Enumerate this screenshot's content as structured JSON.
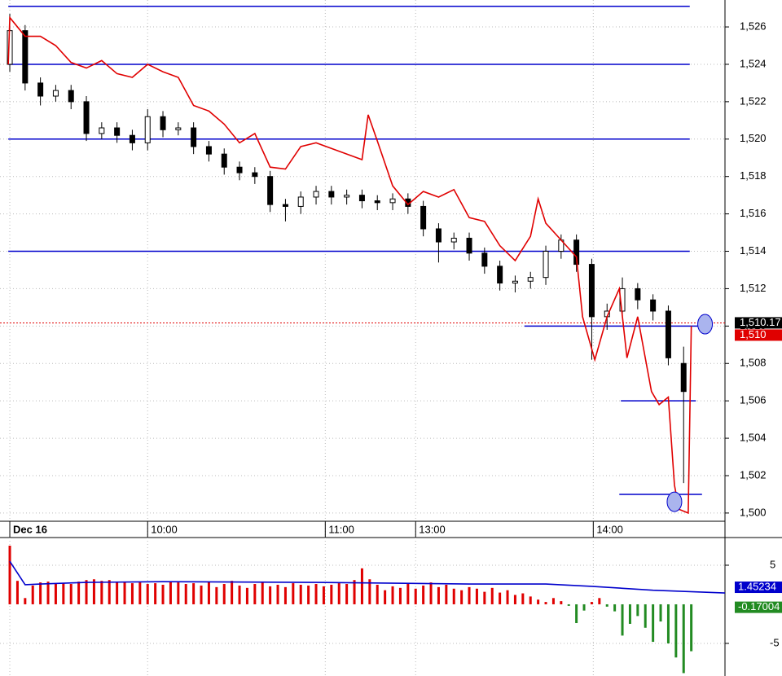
{
  "chart_data": [
    {
      "type": "candlestick",
      "open": [
        1524.0,
        1525.8,
        1523.0,
        1522.3,
        1522.6,
        1522.0,
        1520.3,
        1520.6,
        1520.2,
        1519.8,
        1521.2,
        1520.5,
        1520.6,
        1519.6,
        1519.2,
        1518.5,
        1518.2,
        1518.0,
        1516.5,
        1516.4,
        1516.9,
        1517.2,
        1516.9,
        1517.0,
        1516.7,
        1516.6,
        1516.8,
        1516.4,
        1515.2,
        1514.5,
        1514.7,
        1513.9,
        1513.2,
        1512.3,
        1512.4,
        1512.6,
        1514.0,
        1514.6,
        1513.3,
        1510.5,
        1510.8,
        1512.0,
        1511.4,
        1510.8,
        1508.0
      ],
      "high": [
        1526.7,
        1526.1,
        1523.3,
        1522.9,
        1522.9,
        1522.3,
        1520.9,
        1520.9,
        1520.5,
        1521.6,
        1521.5,
        1520.9,
        1520.9,
        1519.9,
        1519.5,
        1518.8,
        1518.5,
        1518.3,
        1516.8,
        1517.2,
        1517.5,
        1517.5,
        1517.3,
        1517.3,
        1517.0,
        1517.1,
        1517.1,
        1516.7,
        1515.5,
        1515.0,
        1515.0,
        1514.2,
        1513.5,
        1512.7,
        1512.9,
        1514.3,
        1514.9,
        1514.9,
        1513.6,
        1511.2,
        1512.6,
        1512.3,
        1511.7,
        1511.1,
        1508.9
      ],
      "low": [
        1523.6,
        1522.6,
        1521.8,
        1522.0,
        1521.6,
        1519.9,
        1520.0,
        1519.8,
        1519.4,
        1519.4,
        1520.1,
        1520.2,
        1519.2,
        1518.8,
        1518.1,
        1517.8,
        1517.6,
        1516.1,
        1515.6,
        1516.0,
        1516.5,
        1516.5,
        1516.5,
        1516.3,
        1516.2,
        1516.2,
        1516.0,
        1514.8,
        1513.4,
        1514.1,
        1513.5,
        1512.8,
        1511.9,
        1511.8,
        1512.0,
        1512.2,
        1513.6,
        1512.9,
        1508.2,
        1509.8,
        1510.5,
        1510.9,
        1510.3,
        1507.9,
        1501.6
      ],
      "close": [
        1525.8,
        1523.0,
        1522.3,
        1522.6,
        1522.0,
        1520.3,
        1520.6,
        1520.2,
        1519.8,
        1521.2,
        1520.5,
        1520.6,
        1519.6,
        1519.2,
        1518.5,
        1518.2,
        1518.0,
        1516.5,
        1516.4,
        1516.9,
        1517.2,
        1516.9,
        1517.0,
        1516.7,
        1516.6,
        1516.8,
        1516.4,
        1515.2,
        1514.5,
        1514.7,
        1513.9,
        1513.2,
        1512.3,
        1512.4,
        1512.6,
        1514.0,
        1514.6,
        1513.3,
        1510.5,
        1510.8,
        1512.0,
        1511.4,
        1510.8,
        1508.3,
        1506.5
      ],
      "candle_color": "#000000",
      "overlay": {
        "color": "#e00000",
        "x": [
          -0.1,
          0,
          1,
          2,
          3,
          4,
          5,
          6,
          7,
          8,
          9,
          10,
          11,
          12,
          13,
          14,
          15,
          16,
          17,
          18,
          19,
          20,
          21,
          22,
          23,
          23.4,
          24,
          25,
          26,
          27,
          28,
          29,
          30,
          31,
          32,
          33,
          34,
          34.5,
          35,
          36,
          37,
          37.4,
          38.2,
          39,
          39.8,
          40.3,
          41,
          41.9,
          42.4,
          43,
          43.4,
          43.7,
          44.3,
          44.5
        ],
        "values": [
          1524.0,
          1526.5,
          1525.5,
          1525.5,
          1525.0,
          1524.1,
          1523.8,
          1524.2,
          1523.5,
          1523.3,
          1524.0,
          1523.6,
          1523.3,
          1521.8,
          1521.5,
          1520.8,
          1519.8,
          1520.3,
          1518.5,
          1518.4,
          1519.6,
          1519.8,
          1519.5,
          1519.2,
          1518.9,
          1521.3,
          1519.9,
          1517.5,
          1516.5,
          1517.2,
          1516.9,
          1517.3,
          1515.8,
          1515.6,
          1514.3,
          1513.5,
          1514.8,
          1516.8,
          1515.5,
          1514.6,
          1513.7,
          1510.5,
          1508.2,
          1510.5,
          1512.0,
          1508.3,
          1510.5,
          1506.5,
          1505.8,
          1506.2,
          1501.5,
          1500.2,
          1500.0,
          1510.0
        ]
      },
      "levels": {
        "color": "#0000cc",
        "values": [
          1527.1,
          1524,
          1520,
          1514,
          1510,
          1506,
          1501
        ],
        "x_from": [
          -0.1,
          -0.1,
          -0.1,
          -0.1,
          33.6,
          39.9,
          39.8
        ],
        "x_to": [
          44.4,
          44.4,
          44.4,
          44.4,
          45.1,
          44.8,
          45.2
        ]
      },
      "markers": {
        "x": [
          45.4,
          43.4
        ],
        "values": [
          1510.1,
          1500.6
        ],
        "color": "#aab4ee"
      },
      "last_price": {
        "value": 1510.17,
        "label": "1,510.17",
        "color": "#000000"
      },
      "line_last": {
        "value": 1510,
        "label": "1,510",
        "color": "#e00000"
      },
      "xlim": [
        -0.64,
        46.7
      ],
      "xticks": [
        {
          "value": 0,
          "label": "Dec 16"
        },
        {
          "value": 9,
          "label": "10:00"
        },
        {
          "value": 20.6,
          "label": "11:00"
        },
        {
          "value": 26.5,
          "label": "13:00"
        },
        {
          "value": 38.1,
          "label": "14:00"
        }
      ],
      "ylim": [
        1499.56,
        1527.44
      ],
      "yticks": [
        {
          "value": 1500,
          "label": "1,500"
        },
        {
          "value": 1502,
          "label": "1,502"
        },
        {
          "value": 1504,
          "label": "1,504"
        },
        {
          "value": 1506,
          "label": "1,506"
        },
        {
          "value": 1508,
          "label": "1,508"
        },
        {
          "value": 1510,
          "label": "1,510"
        },
        {
          "value": 1512,
          "label": "1,512"
        },
        {
          "value": 1514,
          "label": "1,514"
        },
        {
          "value": 1516,
          "label": "1,516"
        },
        {
          "value": 1518,
          "label": "1,518"
        },
        {
          "value": 1520,
          "label": "1,520"
        },
        {
          "value": 1522,
          "label": "1,522"
        },
        {
          "value": 1524,
          "label": "1,524"
        },
        {
          "value": 1526,
          "label": "1,526"
        }
      ],
      "grid": true
    },
    {
      "type": "histogram-bar",
      "values": [
        7.5,
        3.0,
        0.8,
        2.4,
        2.8,
        2.9,
        2.6,
        2.7,
        2.6,
        2.9,
        3.1,
        3.2,
        3.0,
        3.1,
        2.8,
        2.9,
        2.7,
        2.8,
        2.6,
        2.7,
        2.5,
        2.9,
        2.8,
        2.6,
        2.7,
        2.4,
        2.9,
        2.2,
        2.6,
        3.0,
        2.4,
        2.1,
        2.6,
        2.8,
        2.3,
        2.5,
        2.2,
        2.7,
        2.5,
        2.4,
        2.6,
        2.3,
        2.5,
        2.7,
        2.6,
        3.1,
        4.6,
        3.2,
        2.5,
        1.8,
        2.3,
        2.1,
        2.6,
        2.0,
        2.4,
        2.8,
        2.2,
        2.5,
        2.0,
        1.8,
        2.2,
        2.0,
        1.6,
        2.1,
        1.5,
        1.8,
        1.2,
        1.4,
        1.0,
        0.6,
        0.3,
        0.8,
        0.4,
        -0.2,
        -2.4,
        -0.8,
        0.3,
        0.8,
        -0.3,
        -0.9,
        -4.0,
        -2.5,
        -1.5,
        -3.0,
        -4.8,
        -2.2,
        -5.0,
        -6.8,
        -8.8,
        -6.0
      ],
      "colors": {
        "positive": "#e00000",
        "negative": "#228b22"
      },
      "line": {
        "color": "#0000cc",
        "x": [
          0,
          2,
          4,
          10,
          20,
          40,
          60,
          70,
          76,
          84,
          93.4
        ],
        "values": [
          5.5,
          2.5,
          2.6,
          2.8,
          2.9,
          2.8,
          2.6,
          2.6,
          2.3,
          1.8,
          1.45
        ]
      },
      "last_labels": [
        {
          "value": 1.45234,
          "label": "1.45234",
          "color": "#0000cc"
        },
        {
          "value": -0.17004,
          "label": "-0.17004",
          "color": "#228b22"
        }
      ],
      "xlim": [
        -1.28,
        93.4
      ],
      "ylim": [
        -9.17,
        8.54
      ],
      "yticks": [
        -5,
        5
      ],
      "grid": true
    }
  ]
}
